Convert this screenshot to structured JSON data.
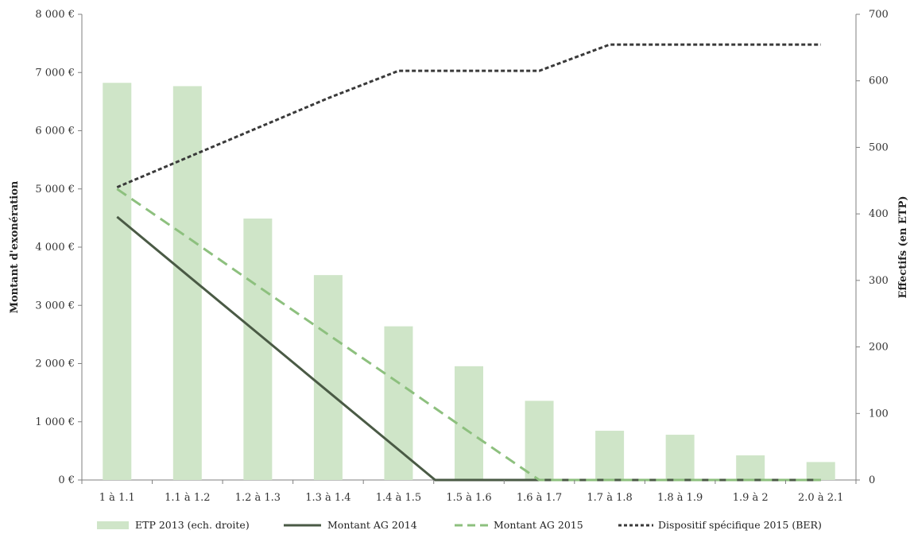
{
  "chart_data": {
    "type": "bar",
    "title": "",
    "categories": [
      "1 à 1.1",
      "1.1 à 1.2",
      "1.2 à 1.3",
      "1.3 à 1.4",
      "1.4 à 1.5",
      "1.5 à 1.6",
      "1.6 à 1.7",
      "1.7 à 1.8",
      "1.8 à 1.9",
      "1.9 à 2",
      "2.0 à 2.1"
    ],
    "ylabel_left": "Montant d'exonération",
    "ylabel_right": "Effectifs (en ETP)",
    "ylim_left": [
      0,
      8000
    ],
    "ylim_right": [
      0,
      700
    ],
    "yticks_left": [
      "0 €",
      "1 000 €",
      "2 000 €",
      "3 000 €",
      "4 000 €",
      "5 000 €",
      "6 000 €",
      "7 000 €",
      "8 000 €"
    ],
    "yticks_right": [
      "0",
      "100",
      "200",
      "300",
      "400",
      "500",
      "600",
      "700"
    ],
    "grid": false,
    "legend_position": "bottom",
    "series": [
      {
        "name": "ETP 2013 (ech. droite)",
        "kind": "bar",
        "axis": "right",
        "color": "#cfe5c8",
        "values": [
          597,
          592,
          393,
          308,
          231,
          171,
          119,
          74,
          68,
          37,
          27
        ]
      },
      {
        "name": "Montant AG 2014",
        "kind": "line",
        "axis": "left",
        "color": "#4a5a45",
        "dash": "solid",
        "values": [
          4520,
          3520,
          2520,
          1520,
          520,
          0,
          0,
          0,
          0,
          0,
          0
        ],
        "x": [
          0,
          1,
          2,
          3,
          4,
          4.52,
          6,
          7,
          8,
          9,
          10
        ],
        "visible_from": 0,
        "zero_after": 6
      },
      {
        "name": "Montant AG 2015",
        "kind": "line",
        "axis": "left",
        "color": "#8dc07e",
        "dash": "long",
        "values": [
          5000,
          4170,
          3330,
          2500,
          1670,
          830,
          0,
          0,
          0,
          0,
          0
        ]
      },
      {
        "name": "Dispositif spécifique 2015 (BER)",
        "kind": "line",
        "axis": "left",
        "color": "#3a3a3a",
        "dash": "short",
        "values": [
          5030,
          5540,
          6050,
          6560,
          7030,
          7030,
          7030,
          7480,
          7480,
          7480,
          7480
        ]
      }
    ]
  }
}
